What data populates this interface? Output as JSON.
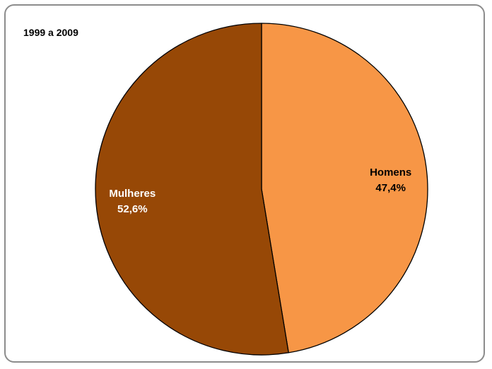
{
  "chart_data": {
    "type": "pie",
    "title": "1999 a 2009",
    "start_angle_deg": 0,
    "direction": "clockwise",
    "slices": [
      {
        "label": "Homens",
        "value": 47.4,
        "value_text": "47,4%",
        "color": "#F79646",
        "label_color": "#000000"
      },
      {
        "label": "Mulheres",
        "value": 52.6,
        "value_text": "52,6%",
        "color": "#974806",
        "label_color": "#FFFFFF"
      }
    ],
    "legend": "none",
    "border_color": "#8C8C8C",
    "slice_edge_color": "#000000"
  }
}
